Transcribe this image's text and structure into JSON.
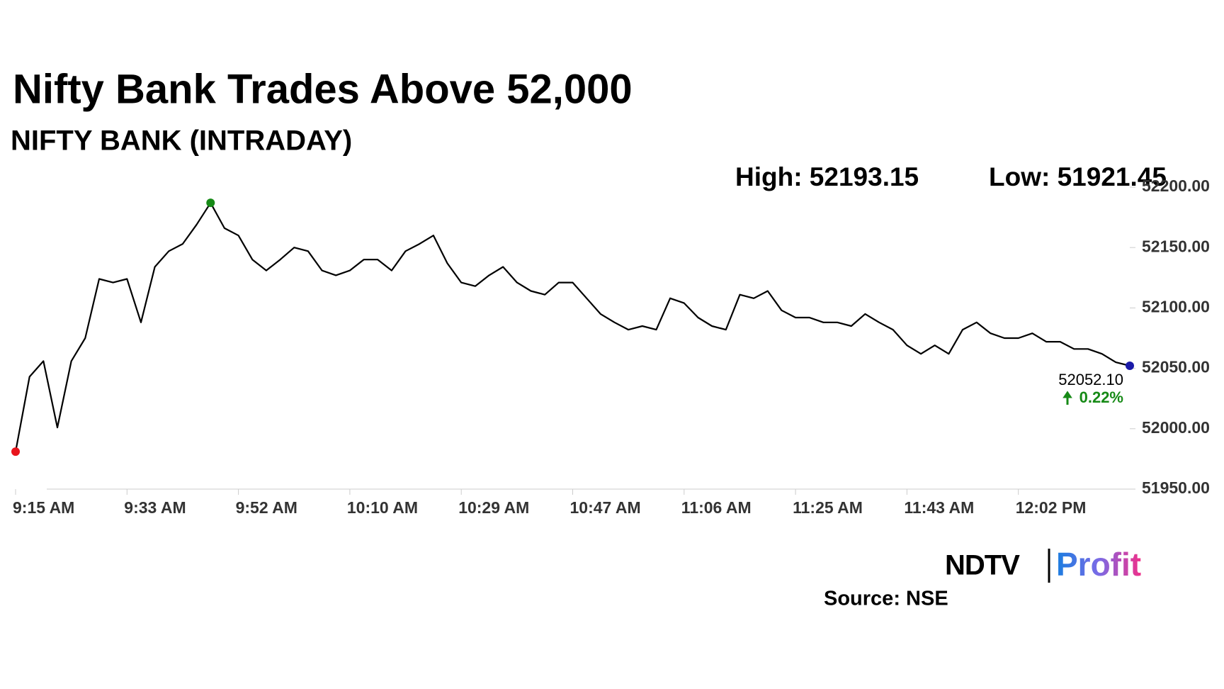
{
  "chart_data": {
    "type": "line",
    "title": "Nifty Bank Trades Above 52,000",
    "subtitle": "NIFTY BANK (INTRADAY)",
    "high_text": "High: 52193.15",
    "low_text": "Low: 51921.45",
    "change_label": "0.22%",
    "source": "Source: NSE",
    "logo": [
      "NDTV",
      "Profit"
    ],
    "categories": [
      "9:15 AM",
      null,
      null,
      null,
      null,
      null,
      null,
      null,
      "9:33 AM",
      null,
      null,
      null,
      null,
      null,
      null,
      null,
      "9:52 AM",
      null,
      null,
      null,
      null,
      null,
      null,
      null,
      "10:10 AM",
      null,
      null,
      null,
      null,
      null,
      null,
      null,
      "10:29 AM",
      null,
      null,
      null,
      null,
      null,
      null,
      null,
      "10:47 AM",
      null,
      null,
      null,
      null,
      null,
      null,
      null,
      "11:06 AM",
      null,
      null,
      null,
      null,
      null,
      null,
      null,
      "11:25 AM",
      null,
      null,
      null,
      null,
      null,
      null,
      null,
      "11:43 AM",
      null,
      null,
      null,
      null,
      null,
      null,
      null,
      "12:02 PM",
      null,
      null,
      null,
      null,
      null,
      null,
      null,
      null
    ],
    "series": [
      {
        "name": "NIFTY BANK",
        "color": "#000000",
        "values": [
          51981,
          52043,
          52056,
          52001,
          52056,
          52075,
          52124,
          52121,
          52124,
          52088,
          52134,
          52147,
          52153,
          52169,
          52187,
          52166,
          52160,
          52140,
          52131,
          52140,
          52150,
          52147,
          52131,
          52127,
          52131,
          52140,
          52140,
          52131,
          52147,
          52153,
          52160,
          52137,
          52121,
          52118,
          52127,
          52134,
          52121,
          52114,
          52111,
          52121,
          52121,
          52108,
          52095,
          52088,
          52082,
          52085,
          52082,
          52108,
          52104,
          52092,
          52085,
          52082,
          52111,
          52108,
          52114,
          52098,
          52092,
          52092,
          52088,
          52088,
          52085,
          52095,
          52088,
          52082,
          52069,
          52062,
          52069,
          52062,
          52082,
          52088,
          52079,
          52075,
          52075,
          52079,
          52072,
          52072,
          52066,
          52066,
          52062,
          52055,
          52052.1
        ],
        "value_labels": [
          null,
          null,
          null,
          null,
          null,
          null,
          null,
          null,
          null,
          null,
          null,
          null,
          null,
          null,
          null,
          null,
          null,
          null,
          null,
          null,
          null,
          null,
          null,
          null,
          null,
          null,
          null,
          null,
          null,
          null,
          null,
          null,
          null,
          null,
          null,
          null,
          null,
          null,
          null,
          null,
          null,
          null,
          null,
          null,
          null,
          null,
          null,
          null,
          null,
          null,
          null,
          null,
          null,
          null,
          null,
          null,
          null,
          null,
          null,
          null,
          null,
          null,
          null,
          null,
          null,
          null,
          null,
          null,
          null,
          null,
          null,
          null,
          null,
          null,
          null,
          null,
          null,
          null,
          null,
          null,
          "52052.10"
        ]
      }
    ],
    "ylim": [
      51950,
      52200
    ],
    "yticks": [
      {
        "value": 51950,
        "label": "51950.00"
      },
      {
        "value": 52000,
        "label": "52000.00"
      },
      {
        "value": 52050,
        "label": "52050.00"
      },
      {
        "value": 52100,
        "label": "52100.00"
      },
      {
        "value": 52150,
        "label": "52150.00"
      },
      {
        "value": 52200,
        "label": "52200.00"
      }
    ],
    "low_color": "#e8141c",
    "high_color": "#168a16",
    "last_color": "#1a1aa8",
    "change_color": "#168a16"
  }
}
